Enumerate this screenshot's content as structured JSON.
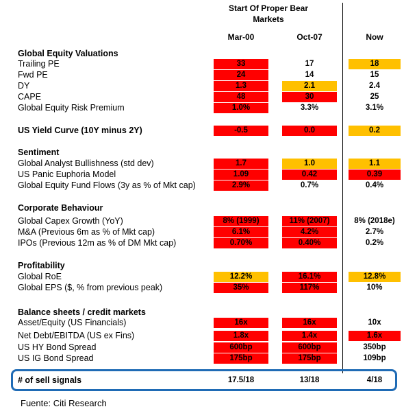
{
  "header": {
    "group_title": "Start Of Proper Bear Markets",
    "col1": "Mar-00",
    "col2": "Oct-07",
    "col3": "Now"
  },
  "colors": {
    "red": "#ff0000",
    "orange": "#ffc000",
    "highlight_border": "#1f6bb5"
  },
  "sections": [
    {
      "title": "Global Equity Valuations",
      "rows": [
        {
          "label": "Trailing PE",
          "c1": "33",
          "c2": "17",
          "c3": "18",
          "s1": "red",
          "s2": "",
          "s3": "orange"
        },
        {
          "label": "Fwd PE",
          "c1": "24",
          "c2": "14",
          "c3": "15",
          "s1": "red",
          "s2": "",
          "s3": ""
        },
        {
          "label": "DY",
          "c1": "1.3",
          "c2": "2.1",
          "c3": "2.4",
          "s1": "red",
          "s2": "orange",
          "s3": ""
        },
        {
          "label": "CAPE",
          "c1": "48",
          "c2": "30",
          "c3": "25",
          "s1": "red",
          "s2": "red",
          "s3": ""
        },
        {
          "label": "Global Equity Risk Premium",
          "c1": "1.0%",
          "c2": "3.3%",
          "c3": "3.1%",
          "s1": "red",
          "s2": "",
          "s3": ""
        }
      ]
    },
    {
      "title": "US Yield Curve (10Y minus 2Y)",
      "inline": {
        "c1": "-0.5",
        "c2": "0.0",
        "c3": "0.2",
        "s1": "red",
        "s2": "red",
        "s3": "orange"
      },
      "rows": []
    },
    {
      "title": "Sentiment",
      "rows": [
        {
          "label": "Global Analyst Bullishness (std dev)",
          "c1": "1.7",
          "c2": "1.0",
          "c3": "1.1",
          "s1": "red",
          "s2": "orange",
          "s3": "orange"
        },
        {
          "label": "US Panic Euphoria Model",
          "c1": "1.09",
          "c2": "0.42",
          "c3": "0.39",
          "s1": "red",
          "s2": "red",
          "s3": "red"
        },
        {
          "label": "Global Equity Fund Flows (3y as % of Mkt cap)",
          "c1": "2.9%",
          "c2": "0.7%",
          "c3": "0.4%",
          "s1": "red",
          "s2": "",
          "s3": ""
        }
      ]
    },
    {
      "title": "Corporate Behaviour",
      "rows": [
        {
          "label": "Global Capex Growth (YoY)",
          "c1": "8% (1999)",
          "c2": "11% (2007)",
          "c3": "8% (2018e)",
          "s1": "red",
          "s2": "red",
          "s3": ""
        },
        {
          "label": "M&A (Previous 6m as % of Mkt cap)",
          "c1": "6.1%",
          "c2": "4.2%",
          "c3": "2.7%",
          "s1": "red",
          "s2": "red",
          "s3": ""
        },
        {
          "label": "IPOs (Previous 12m as % of DM Mkt cap)",
          "c1": "0.70%",
          "c2": "0.40%",
          "c3": "0.2%",
          "s1": "red",
          "s2": "red",
          "s3": ""
        }
      ]
    },
    {
      "title": "Profitability",
      "rows": [
        {
          "label": "Global RoE",
          "c1": "12.2%",
          "c2": "16.1%",
          "c3": "12.8%",
          "s1": "orange",
          "s2": "red",
          "s3": "orange"
        },
        {
          "label": "Global EPS  ($, % from previous peak)",
          "c1": "35%",
          "c2": "117%",
          "c3": "10%",
          "s1": "red",
          "s2": "red",
          "s3": ""
        }
      ]
    },
    {
      "title": "Balance sheets / credit markets",
      "rows": [
        {
          "label": "Asset/Equity (US Financials)",
          "c1": "16x",
          "c2": "16x",
          "c3": "10x",
          "s1": "red",
          "s2": "red",
          "s3": ""
        },
        {
          "label": "Net Debt/EBITDA (US ex Fins)",
          "c1": "1.8x",
          "c2": "1.4x",
          "c3": "1.6x",
          "s1": "red",
          "s2": "red",
          "s3": "red"
        },
        {
          "label": "US HY Bond Spread",
          "c1": "600bp",
          "c2": "600bp",
          "c3": "350bp",
          "s1": "red",
          "s2": "red",
          "s3": ""
        },
        {
          "label": "US IG Bond Spread",
          "c1": "175bp",
          "c2": "175bp",
          "c3": "109bp",
          "s1": "red",
          "s2": "red",
          "s3": ""
        }
      ]
    }
  ],
  "sell_signals": {
    "label": "# of sell signals",
    "c1": "17.5/18",
    "c2": "13/18",
    "c3": "4/18"
  },
  "source": "Fuente: Citi Research"
}
